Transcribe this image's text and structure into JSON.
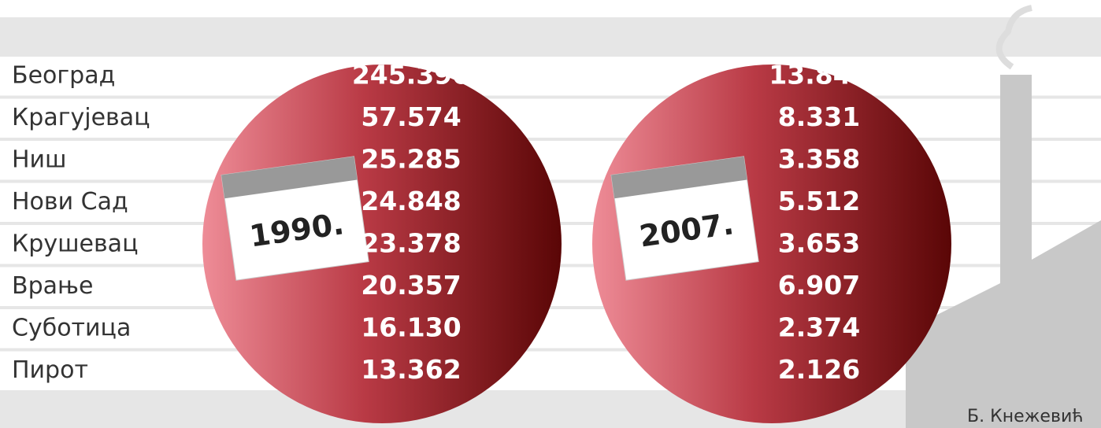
{
  "table": {
    "years": [
      "1990.",
      "2007."
    ],
    "rows": [
      [
        "Београд",
        "245.390",
        "13.842"
      ],
      [
        "Крагујевац",
        "57.574",
        "8.331"
      ],
      [
        "Ниш",
        "25.285",
        "3.358"
      ],
      [
        "Нови Сад",
        "24.848",
        "5.512"
      ],
      [
        "Крушевац",
        "23.378",
        "3.653"
      ],
      [
        "Врање",
        "20.357",
        "6.907"
      ],
      [
        "Суботица",
        "16.130",
        "2.374"
      ],
      [
        "Пирот",
        "13.362",
        "2.126"
      ]
    ]
  },
  "credit": "Б. Кнежевић"
}
